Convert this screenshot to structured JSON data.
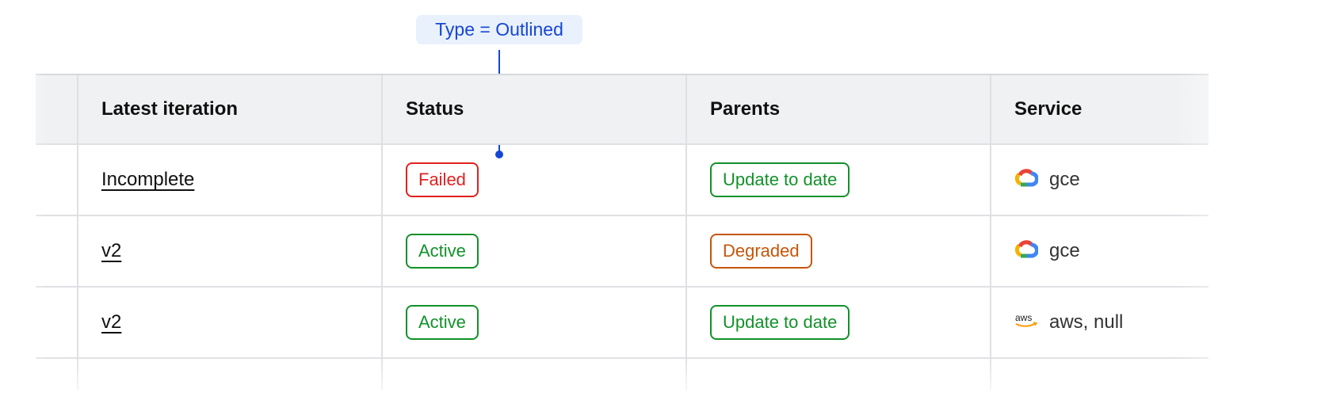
{
  "annotation": {
    "label": "Type = Outlined",
    "color": "#1646d6"
  },
  "columns": [
    "",
    "Latest iteration",
    "Status",
    "Parents",
    "Service"
  ],
  "rows": [
    {
      "iteration": "Incomplete",
      "status": {
        "label": "Failed",
        "color": "#e0201f"
      },
      "parents": {
        "label": "Update to date",
        "color": "#12912a"
      },
      "service": {
        "icon": "google-cloud-icon",
        "label": "gce"
      }
    },
    {
      "iteration": "v2",
      "status": {
        "label": "Active",
        "color": "#12912a"
      },
      "parents": {
        "label": "Degraded",
        "color": "#c5560a"
      },
      "service": {
        "icon": "google-cloud-icon",
        "label": "gce"
      }
    },
    {
      "iteration": "v2",
      "status": {
        "label": "Active",
        "color": "#12912a"
      },
      "parents": {
        "label": "Update to date",
        "color": "#12912a"
      },
      "service": {
        "icon": "aws-icon",
        "label": "aws, null"
      }
    }
  ]
}
